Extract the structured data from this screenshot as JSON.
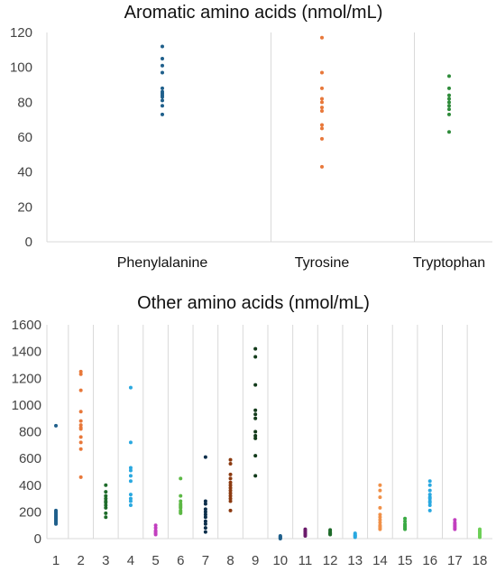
{
  "chart_data": [
    {
      "type": "scatter",
      "title": "Aromatic amino acids (nmol/mL)",
      "xlabel": "",
      "ylabel": "",
      "ylim": [
        0,
        120
      ],
      "yticks": [
        0,
        20,
        40,
        60,
        80,
        100,
        120
      ],
      "grid": "vertical lines at categories",
      "categories": [
        "Phenylalanine",
        "Tyrosine",
        "Tryptophan"
      ],
      "series": [
        {
          "category": "Phenylalanine",
          "color": "#1f5f8b",
          "values": [
            112,
            105,
            101,
            97,
            88,
            86,
            85,
            84,
            83,
            81,
            78,
            73
          ]
        },
        {
          "category": "Tyrosine",
          "color": "#e8783a",
          "values": [
            117,
            97,
            88,
            82,
            80,
            77,
            75,
            67,
            65,
            59,
            43
          ]
        },
        {
          "category": "Tryptophan",
          "color": "#2e8b3a",
          "values": [
            95,
            88,
            84,
            82,
            80,
            78,
            76,
            73,
            63
          ]
        }
      ]
    },
    {
      "type": "scatter",
      "title": "Other amino acids (nmol/mL)",
      "xlabel": "",
      "ylabel": "",
      "ylim": [
        0,
        1600
      ],
      "yticks": [
        0,
        200,
        400,
        600,
        800,
        1000,
        1200,
        1400,
        1600
      ],
      "grid": "vertical lines at categories",
      "categories": [
        "1",
        "2",
        "3",
        "4",
        "5",
        "6",
        "7",
        "8",
        "9",
        "10",
        "11",
        "12",
        "13",
        "14",
        "15",
        "16",
        "17",
        "18"
      ],
      "series": [
        {
          "category": "1",
          "color": "#1f5f8b",
          "values": [
            845,
            210,
            200,
            190,
            180,
            170,
            160,
            150,
            140,
            130,
            120,
            110
          ]
        },
        {
          "category": "2",
          "color": "#e8783a",
          "values": [
            1250,
            1230,
            1110,
            950,
            880,
            850,
            830,
            820,
            760,
            720,
            670,
            460
          ]
        },
        {
          "category": "3",
          "color": "#1e6b2a",
          "values": [
            400,
            350,
            320,
            300,
            280,
            270,
            250,
            230,
            190,
            160
          ]
        },
        {
          "category": "4",
          "color": "#29a8e0",
          "values": [
            1130,
            720,
            530,
            510,
            470,
            430,
            330,
            300,
            280,
            250
          ]
        },
        {
          "category": "5",
          "color": "#c23fbf",
          "values": [
            100,
            80,
            60,
            50,
            40,
            30
          ]
        },
        {
          "category": "6",
          "color": "#5cb845",
          "values": [
            450,
            320,
            280,
            260,
            250,
            240,
            230,
            210,
            200,
            190
          ]
        },
        {
          "category": "7",
          "color": "#0c2e4a",
          "values": [
            610,
            280,
            260,
            220,
            200,
            180,
            160,
            130,
            110,
            80,
            50
          ]
        },
        {
          "category": "8",
          "color": "#8b3a10",
          "values": [
            590,
            560,
            480,
            450,
            420,
            400,
            380,
            360,
            340,
            320,
            300,
            280,
            210
          ]
        },
        {
          "category": "9",
          "color": "#123a1a",
          "values": [
            1420,
            1360,
            1150,
            960,
            930,
            900,
            800,
            770,
            750,
            620,
            470
          ]
        },
        {
          "category": "10",
          "color": "#1f5f8b",
          "values": [
            20,
            15,
            10,
            5,
            0
          ]
        },
        {
          "category": "11",
          "color": "#6a1a6a",
          "values": [
            70,
            60,
            50,
            40,
            30,
            20
          ]
        },
        {
          "category": "12",
          "color": "#1e6b2a",
          "values": [
            65,
            55,
            45,
            40,
            35,
            30
          ]
        },
        {
          "category": "13",
          "color": "#29a8e0",
          "values": [
            40,
            30,
            25,
            20,
            15,
            10
          ]
        },
        {
          "category": "14",
          "color": "#f09048",
          "values": [
            400,
            360,
            310,
            230,
            180,
            160,
            140,
            120,
            100,
            90,
            80,
            70
          ]
        },
        {
          "category": "15",
          "color": "#3aaa44",
          "values": [
            150,
            130,
            110,
            100,
            90,
            80,
            70
          ]
        },
        {
          "category": "16",
          "color": "#29a8e0",
          "values": [
            430,
            400,
            360,
            330,
            310,
            300,
            280,
            270,
            250,
            210
          ]
        },
        {
          "category": "17",
          "color": "#c23fbf",
          "values": [
            140,
            120,
            110,
            100,
            90,
            80,
            70
          ]
        },
        {
          "category": "18",
          "color": "#6ccf56",
          "values": [
            70,
            60,
            50,
            40,
            30,
            20,
            10
          ]
        }
      ]
    }
  ]
}
